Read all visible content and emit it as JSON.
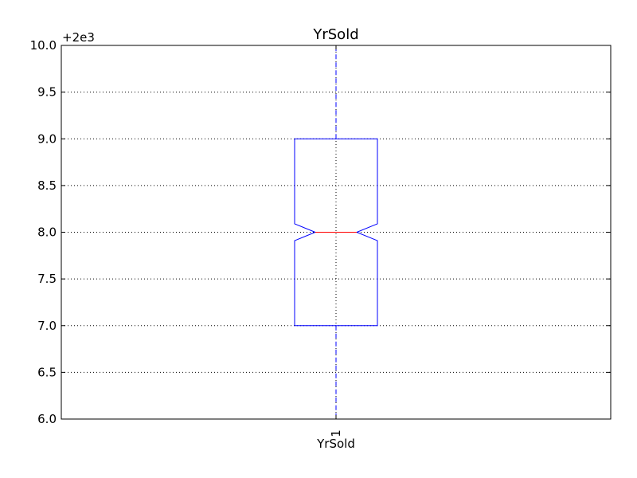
{
  "chart_data": {
    "type": "box",
    "title": "YrSold",
    "xlabel": "YrSold",
    "ylabel": "",
    "y_offset_label": "+2e3",
    "ylim": [
      6.0,
      10.0
    ],
    "yticks": [
      "6.0",
      "6.5",
      "7.0",
      "7.5",
      "8.0",
      "8.5",
      "9.0",
      "9.5",
      "10.0"
    ],
    "ytick_values": [
      6.0,
      6.5,
      7.0,
      7.5,
      8.0,
      8.5,
      9.0,
      9.5,
      10.0
    ],
    "categories": [
      "1"
    ],
    "grid": true,
    "notched": true,
    "boxes": [
      {
        "label": "1",
        "whisker_low": 6.0,
        "q1": 7.0,
        "median": 8.0,
        "q3": 9.0,
        "whisker_high": 10.0,
        "notch_low": 7.91,
        "notch_high": 8.09
      }
    ],
    "colors": {
      "box": "#0000ff",
      "median": "#ff0000",
      "whisker": "#0000ff",
      "grid": "#000000"
    }
  }
}
